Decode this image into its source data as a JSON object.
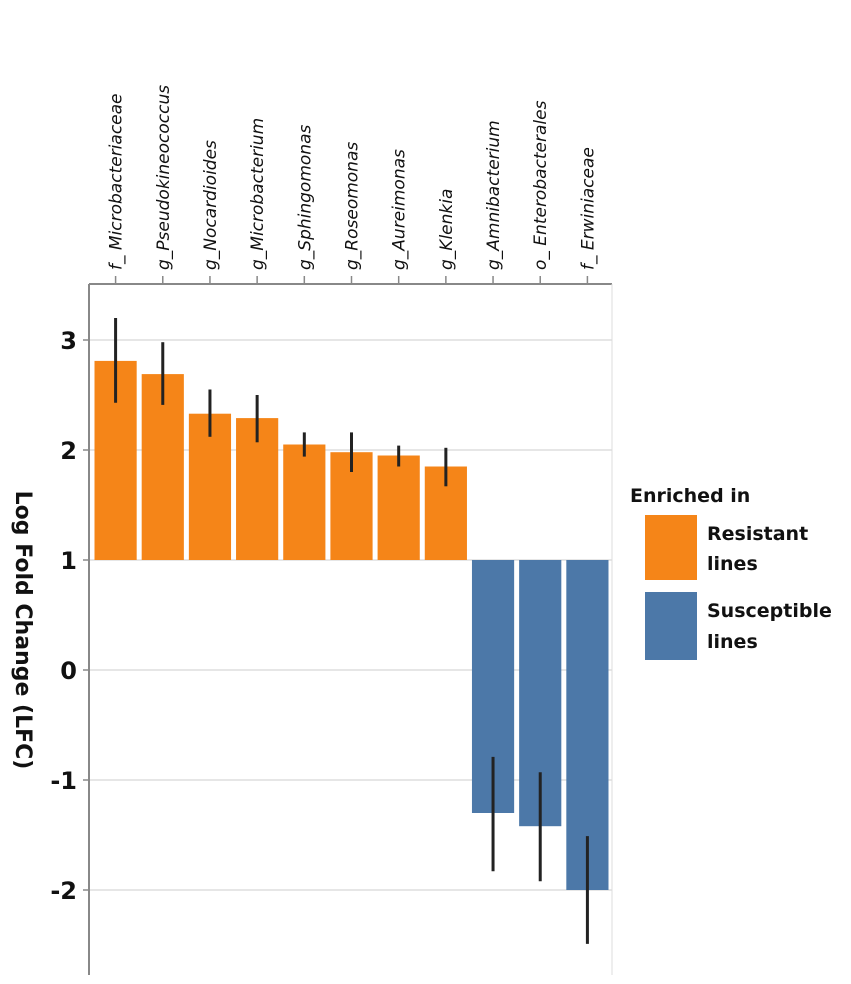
{
  "chart_data": {
    "type": "bar",
    "title": "",
    "xlabel": "",
    "ylabel": "Log Fold Change (LFC)",
    "ylim": [
      -2.8,
      3.5
    ],
    "baseline": 1,
    "yticks": [
      "3",
      "2",
      "1",
      "0",
      "-1",
      "-2"
    ],
    "ytick_values": [
      3,
      2,
      1,
      0,
      -1,
      -2
    ],
    "grid": true,
    "categories": [
      "f_ Microbacteriaceae",
      "g_Pseudokineococcus",
      "g_Nocardioides",
      "g_Microbacterium",
      "g_Sphingomonas",
      "g_Roseomonas",
      "g_Aureimonas",
      "g_Klenkia",
      "g_Amnibacterium",
      "o_ Enterobacterales",
      "f_ Erwiniaceae"
    ],
    "values": [
      2.81,
      2.69,
      2.33,
      2.29,
      2.05,
      1.98,
      1.95,
      1.85,
      -1.3,
      -1.42,
      -2.0
    ],
    "error_high": [
      3.2,
      2.98,
      2.55,
      2.5,
      2.16,
      2.16,
      2.04,
      2.02,
      -0.79,
      -0.93,
      -1.51
    ],
    "error_low": [
      2.43,
      2.41,
      2.12,
      2.07,
      1.94,
      1.8,
      1.85,
      1.67,
      -1.83,
      -1.92,
      -2.49
    ],
    "groups": [
      "Resistant lines",
      "Resistant lines",
      "Resistant lines",
      "Resistant lines",
      "Resistant lines",
      "Resistant lines",
      "Resistant lines",
      "Resistant lines",
      "Susceptible lines",
      "Susceptible lines",
      "Susceptible lines"
    ],
    "legend": {
      "title": "Enriched in",
      "placement": "right",
      "entries": [
        {
          "label_lines": [
            "Resistant",
            "lines"
          ],
          "color": "#f58518"
        },
        {
          "label_lines": [
            "Susceptible",
            "lines"
          ],
          "color": "#4c78a8"
        }
      ]
    }
  }
}
